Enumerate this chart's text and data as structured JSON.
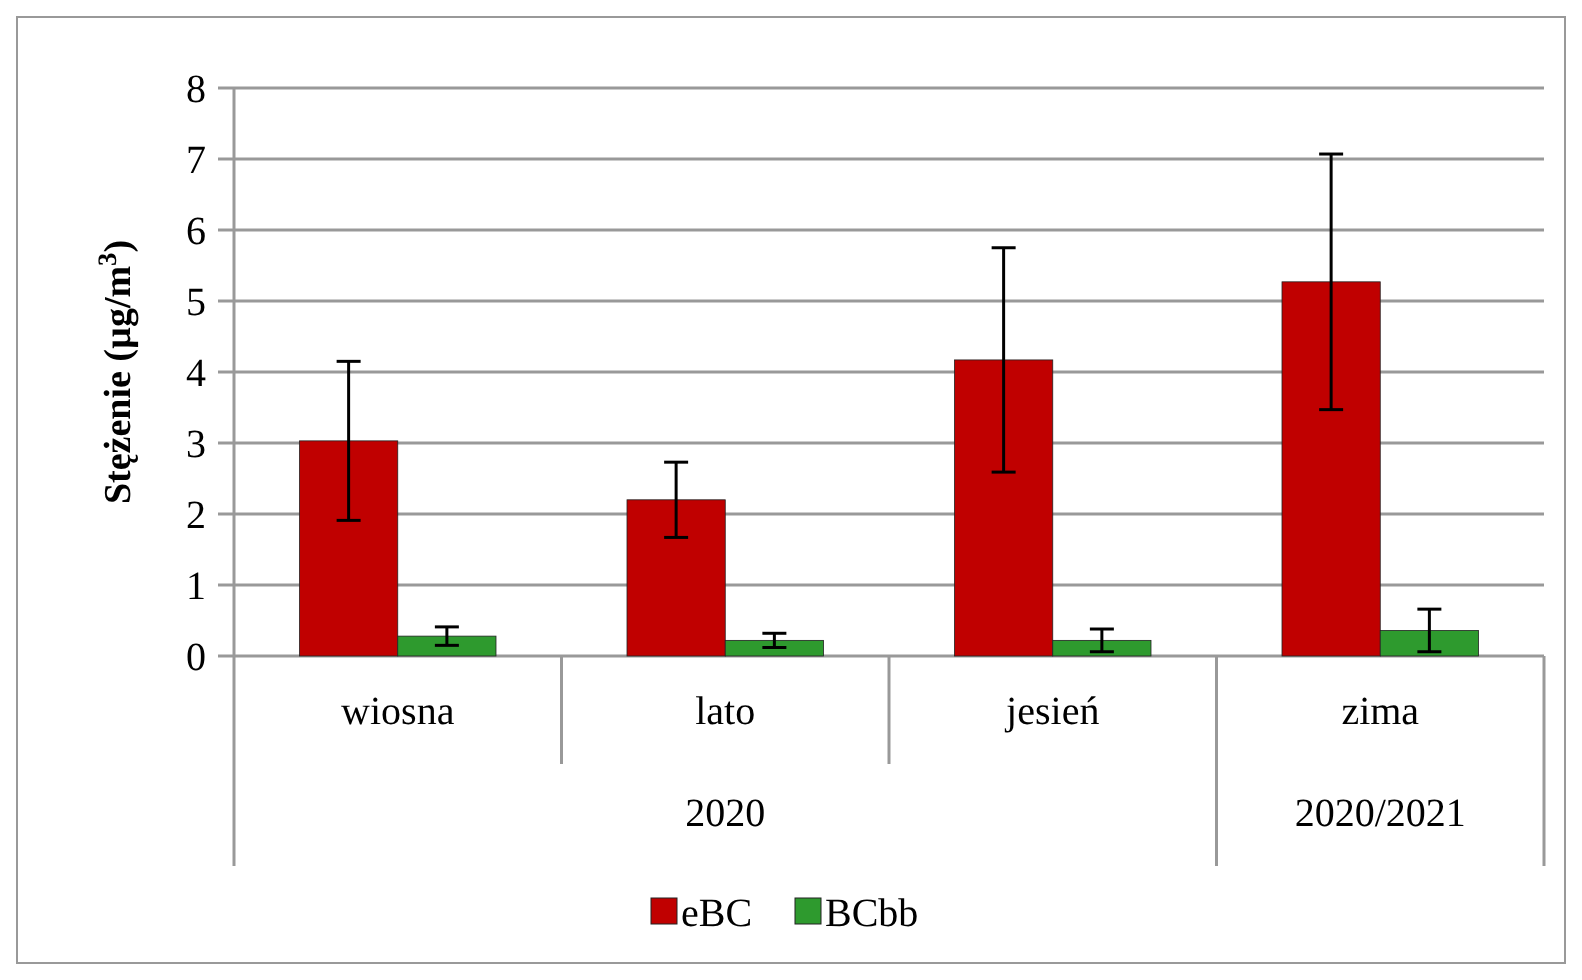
{
  "chart_data": {
    "type": "bar",
    "ylabel": "Stężenie (µg/m$^{3}$)",
    "categories": [
      "wiosna",
      "lato",
      "jesień",
      "zima"
    ],
    "series": [
      {
        "name": "eBC",
        "color": "#c00000",
        "values": [
          3.03,
          2.2,
          4.17,
          5.27
        ],
        "errors": [
          1.12,
          0.53,
          1.58,
          1.8
        ]
      },
      {
        "name": "BCbb",
        "color": "#2e9a2e",
        "values": [
          0.28,
          0.22,
          0.22,
          0.36
        ],
        "errors": [
          0.13,
          0.1,
          0.16,
          0.3
        ]
      }
    ],
    "ylim": [
      0,
      8
    ],
    "yticks": [
      0,
      1,
      2,
      3,
      4,
      5,
      6,
      7,
      8
    ],
    "grid": "y",
    "legend": "bottom",
    "annotations": [
      "2020",
      "2020/2021"
    ]
  }
}
